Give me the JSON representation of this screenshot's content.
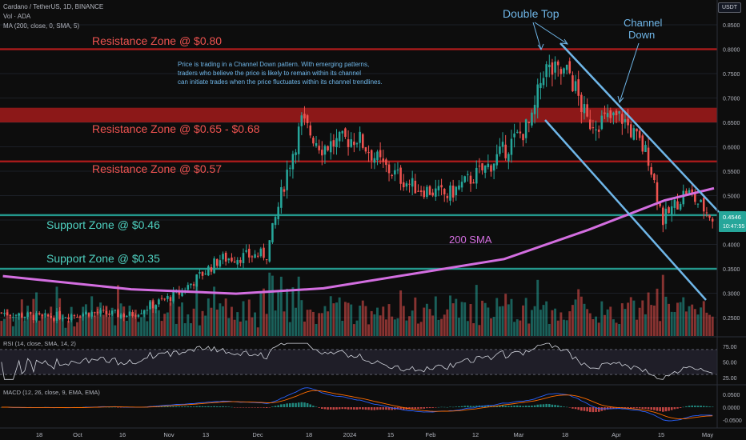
{
  "header": {
    "symbol_line": "Cardano / TetherUS, 1D, BINANCE",
    "volume_label": "Vol · ADA",
    "ma_label": "MA (200, close, 0, SMA, 5)",
    "currency": "USDT"
  },
  "annotations": {
    "double_top": "Double Top",
    "channel_down_1": "Channel",
    "channel_down_2": "Down",
    "res_080": "Resistance Zone @ $0.80",
    "res_065": "Resistance Zone @ $0.65 - $0.68",
    "res_057": "Resistance Zone @ $0.57",
    "sup_046": "Support Zone @ $0.46",
    "sup_035": "Support Zone @ $0.35",
    "sma_label": "200 SMA",
    "note_lines": [
      "Price is trading in a Channel Down pattern. With emerging patterns,",
      "traders who believe the price is likely to remain within its channel",
      "can initiate trades when the price fluctuates within its channel trendlines."
    ]
  },
  "price_axis": {
    "ticks": [
      "0.8500",
      "0.8000",
      "0.7500",
      "0.7000",
      "0.6500",
      "0.6000",
      "0.5500",
      "0.5000",
      "0.4500",
      "0.4000",
      "0.3500",
      "0.3000",
      "0.2500"
    ],
    "last_price": "0.4546",
    "countdown": "10:47:55"
  },
  "rsi": {
    "label": "RSI (14, close, SMA, 14, 2)",
    "ticks": [
      "75.00",
      "50.00",
      "25.00"
    ]
  },
  "macd": {
    "label": "MACD (12, 26, close, 9, EMA, EMA)",
    "ticks": [
      "0.0500",
      "0.0000",
      "-0.0500"
    ]
  },
  "time_axis": [
    "18",
    "Oct",
    "16",
    "Nov",
    "13",
    "Dec",
    "18",
    "2024",
    "15",
    "Feb",
    "12",
    "Mar",
    "18",
    "Apr",
    "15",
    "May"
  ],
  "colors": {
    "bull": "#26a69a",
    "bear": "#ef5350",
    "sma": "#d36ee0",
    "channel": "#6fb6e8",
    "res_text": "#ef5350",
    "sup_text": "#4fd1c1",
    "zone_red": "#b71c1c",
    "zone_green": "#26a69a"
  },
  "chart_data": {
    "type": "candlestick",
    "x_start": "2023-08-31",
    "x_end": "2024-05-02",
    "ylim": [
      0.23,
      0.87
    ],
    "series": [
      {
        "name": "ADA/USDT (approx closes)",
        "points": [
          [
            "2023-09-01",
            0.26
          ],
          [
            "2023-09-15",
            0.25
          ],
          [
            "2023-10-01",
            0.26
          ],
          [
            "2023-10-15",
            0.255
          ],
          [
            "2023-11-01",
            0.3
          ],
          [
            "2023-11-15",
            0.37
          ],
          [
            "2023-12-01",
            0.38
          ],
          [
            "2023-12-08",
            0.55
          ],
          [
            "2023-12-13",
            0.65
          ],
          [
            "2023-12-20",
            0.6
          ],
          [
            "2024-01-01",
            0.62
          ],
          [
            "2024-01-10",
            0.56
          ],
          [
            "2024-01-20",
            0.52
          ],
          [
            "2024-02-01",
            0.5
          ],
          [
            "2024-02-15",
            0.56
          ],
          [
            "2024-03-01",
            0.65
          ],
          [
            "2024-03-05",
            0.76
          ],
          [
            "2024-03-10",
            0.75
          ],
          [
            "2024-03-14",
            0.75
          ],
          [
            "2024-03-20",
            0.65
          ],
          [
            "2024-04-01",
            0.66
          ],
          [
            "2024-04-10",
            0.58
          ],
          [
            "2024-04-15",
            0.45
          ],
          [
            "2024-04-23",
            0.51
          ],
          [
            "2024-05-02",
            0.4546
          ]
        ]
      },
      {
        "name": "200 SMA",
        "points": [
          [
            "2023-09-01",
            0.335
          ],
          [
            "2023-10-15",
            0.308
          ],
          [
            "2023-11-20",
            0.299
          ],
          [
            "2023-12-20",
            0.31
          ],
          [
            "2024-01-20",
            0.34
          ],
          [
            "2024-02-20",
            0.37
          ],
          [
            "2024-03-20",
            0.43
          ],
          [
            "2024-04-15",
            0.49
          ],
          [
            "2024-05-02",
            0.515
          ]
        ]
      }
    ],
    "zones": [
      {
        "label": "Resistance Zone @ $0.80",
        "low": 0.798,
        "high": 0.802,
        "kind": "resistance"
      },
      {
        "label": "Resistance Zone @ $0.65 - $0.68",
        "low": 0.65,
        "high": 0.68,
        "kind": "resistance"
      },
      {
        "label": "Resistance Zone @ $0.57",
        "low": 0.568,
        "high": 0.572,
        "kind": "resistance"
      },
      {
        "label": "Support Zone @ $0.46",
        "low": 0.458,
        "high": 0.462,
        "kind": "support"
      },
      {
        "label": "Support Zone @ $0.35",
        "low": 0.348,
        "high": 0.352,
        "kind": "support"
      }
    ]
  }
}
